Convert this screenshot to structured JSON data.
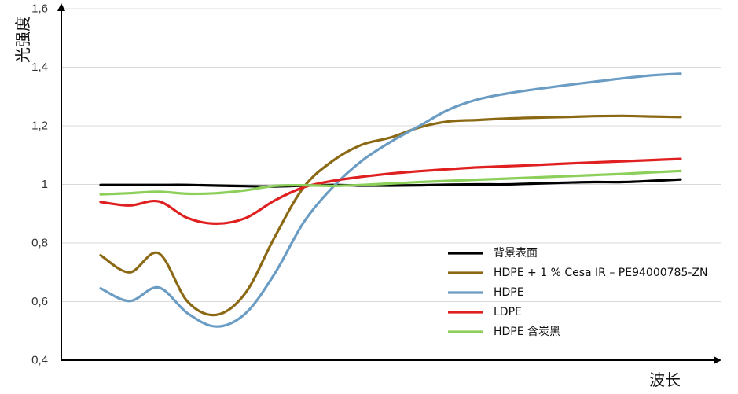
{
  "chart_data": {
    "type": "line",
    "title": "",
    "xlabel": "波长",
    "ylabel": "光强度",
    "ylim": [
      0.4,
      1.6
    ],
    "yticks": [
      {
        "value": 0.4,
        "label": "0,4"
      },
      {
        "value": 0.6,
        "label": "0,6"
      },
      {
        "value": 0.8,
        "label": "0,8"
      },
      {
        "value": 1.0,
        "label": "1"
      },
      {
        "value": 1.2,
        "label": "1,2"
      },
      {
        "value": 1.4,
        "label": "1,4"
      },
      {
        "value": 1.6,
        "label": "1,6"
      }
    ],
    "grid": "horizontal",
    "legend": "bottom-right",
    "x": [
      0,
      5,
      10,
      15,
      20,
      25,
      30,
      35,
      40,
      45,
      50,
      55,
      60,
      65,
      70,
      75,
      80,
      85,
      90,
      95,
      100
    ],
    "series": [
      {
        "name": "背景表面",
        "color": "#000000",
        "values": [
          0.998,
          0.998,
          0.998,
          0.998,
          0.996,
          0.994,
          0.993,
          0.996,
          0.998,
          0.996,
          0.996,
          0.997,
          0.999,
          1.0,
          1.0,
          1.003,
          1.006,
          1.008,
          1.008,
          1.012,
          1.017
        ]
      },
      {
        "name": "HDPE + 1 % Cesa IR – PE94000785-ZN",
        "color": "#8B6914",
        "values": [
          0.758,
          0.7,
          0.765,
          0.6,
          0.555,
          0.63,
          0.82,
          0.99,
          1.08,
          1.135,
          1.16,
          1.195,
          1.215,
          1.22,
          1.225,
          1.228,
          1.23,
          1.233,
          1.234,
          1.232,
          1.23
        ]
      },
      {
        "name": "HDPE",
        "color": "#6A9CC4",
        "values": [
          0.645,
          0.602,
          0.648,
          0.56,
          0.515,
          0.56,
          0.695,
          0.87,
          0.99,
          1.08,
          1.145,
          1.2,
          1.255,
          1.29,
          1.31,
          1.325,
          1.338,
          1.35,
          1.362,
          1.372,
          1.378
        ]
      },
      {
        "name": "LDPE",
        "color": "#E02020",
        "values": [
          0.94,
          0.928,
          0.942,
          0.885,
          0.866,
          0.885,
          0.945,
          0.99,
          1.012,
          1.026,
          1.037,
          1.045,
          1.052,
          1.058,
          1.062,
          1.066,
          1.071,
          1.075,
          1.079,
          1.083,
          1.087
        ]
      },
      {
        "name": "HDPE 含炭黑",
        "color": "#8CCF5A",
        "values": [
          0.966,
          0.97,
          0.975,
          0.968,
          0.97,
          0.98,
          0.995,
          0.997,
          0.995,
          0.998,
          1.003,
          1.008,
          1.012,
          1.016,
          1.02,
          1.024,
          1.028,
          1.032,
          1.036,
          1.041,
          1.046
        ]
      }
    ]
  }
}
